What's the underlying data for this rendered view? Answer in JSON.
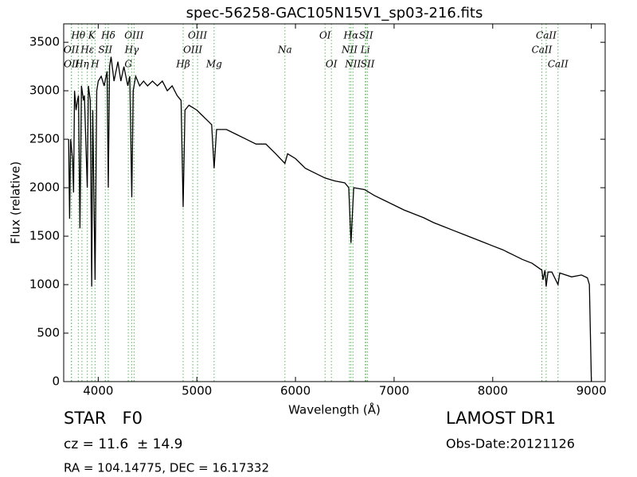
{
  "chart_data": {
    "type": "line",
    "title": "spec-56258-GAC105N15V1_sp03-216.fits",
    "x_label": "Wavelength (Å)",
    "y_label": "Flux (relative)",
    "xlim": [
      3650,
      9140
    ],
    "ylim": [
      0,
      3690
    ],
    "xticks": [
      4000,
      5000,
      6000,
      7000,
      8000,
      9000
    ],
    "yticks": [
      0,
      500,
      1000,
      1500,
      2000,
      2500,
      3000,
      3500
    ],
    "series": [
      {
        "name": "Flux",
        "color": "#000000",
        "x": [
          3700,
          3710,
          3720,
          3740,
          3750,
          3760,
          3775,
          3790,
          3800,
          3815,
          3830,
          3850,
          3860,
          3889,
          3900,
          3920,
          3934,
          3945,
          3968,
          3985,
          4000,
          4030,
          4060,
          4090,
          4102,
          4115,
          4130,
          4160,
          4200,
          4230,
          4260,
          4300,
          4320,
          4340,
          4355,
          4380,
          4420,
          4460,
          4500,
          4550,
          4600,
          4650,
          4700,
          4750,
          4800,
          4840,
          4861,
          4880,
          4920,
          5000,
          5050,
          5100,
          5150,
          5175,
          5200,
          5300,
          5400,
          5500,
          5600,
          5700,
          5800,
          5893,
          5920,
          6000,
          6100,
          6200,
          6300,
          6400,
          6500,
          6540,
          6563,
          6590,
          6700,
          6800,
          6900,
          7000,
          7100,
          7200,
          7300,
          7400,
          7500,
          7600,
          7700,
          7800,
          7900,
          8000,
          8100,
          8200,
          8300,
          8400,
          8498,
          8510,
          8530,
          8542,
          8560,
          8600,
          8662,
          8680,
          8800,
          8900,
          8960,
          8980,
          9000
        ],
        "values": [
          2500,
          1680,
          2500,
          2300,
          1950,
          3000,
          2800,
          2900,
          2950,
          1580,
          3050,
          2900,
          2950,
          2000,
          3050,
          2900,
          980,
          2800,
          1050,
          3000,
          3100,
          3150,
          3050,
          3200,
          2000,
          3250,
          3350,
          3100,
          3300,
          3100,
          3250,
          3050,
          3150,
          1900,
          3000,
          3150,
          3050,
          3100,
          3050,
          3100,
          3050,
          3100,
          3000,
          3050,
          2950,
          2900,
          1800,
          2800,
          2850,
          2800,
          2750,
          2700,
          2650,
          2200,
          2600,
          2600,
          2550,
          2500,
          2450,
          2450,
          2350,
          2250,
          2350,
          2300,
          2200,
          2150,
          2100,
          2070,
          2050,
          2000,
          1430,
          2000,
          1980,
          1920,
          1870,
          1820,
          1770,
          1730,
          1690,
          1640,
          1600,
          1560,
          1520,
          1480,
          1440,
          1400,
          1360,
          1310,
          1260,
          1220,
          1150,
          1050,
          1150,
          980,
          1130,
          1130,
          1000,
          1120,
          1080,
          1100,
          1070,
          1000,
          0
        ]
      }
    ],
    "line_color": "#5cb85c",
    "spectral_lines": [
      [
        {
          "label": "Hθ",
          "x": 3798
        },
        {
          "label": "K",
          "x": 3934
        },
        {
          "label": "Hδ",
          "x": 4102
        },
        {
          "label": "OIII",
          "x": 4363
        },
        {
          "label": "OIII",
          "x": 5007
        },
        {
          "label": "OI",
          "x": 6300
        },
        {
          "label": "Hα",
          "x": 6563
        },
        {
          "label": "SII",
          "x": 6716
        },
        {
          "label": "CaII",
          "x": 8542
        }
      ],
      [
        {
          "label": "OII",
          "x": 3727
        },
        {
          "label": "Hε",
          "x": 3890
        },
        {
          "label": "SII",
          "x": 4072
        },
        {
          "label": "Hγ",
          "x": 4340
        },
        {
          "label": "OIII",
          "x": 4959
        },
        {
          "label": "Na",
          "x": 5893
        },
        {
          "label": "NII",
          "x": 6548
        },
        {
          "label": "Li",
          "x": 6708
        },
        {
          "label": "CaII",
          "x": 8498
        }
      ],
      [
        {
          "label": "OII",
          "x": 3729
        },
        {
          "label": "Hη",
          "x": 3835
        },
        {
          "label": "H",
          "x": 3968
        },
        {
          "label": "G",
          "x": 4305
        },
        {
          "label": "Hβ",
          "x": 4861
        },
        {
          "label": "Mg",
          "x": 5175
        },
        {
          "label": "OI",
          "x": 6364
        },
        {
          "label": "NII",
          "x": 6583
        },
        {
          "label": "SII",
          "x": 6731
        },
        {
          "label": "CaII",
          "x": 8662
        }
      ]
    ]
  },
  "info": {
    "class": "STAR   F0",
    "cz": "cz = 11.6  ± 14.9",
    "coords": "RA = 104.14775, DEC = 16.17332",
    "survey": "LAMOST DR1",
    "date": "Obs-Date:20121126"
  }
}
